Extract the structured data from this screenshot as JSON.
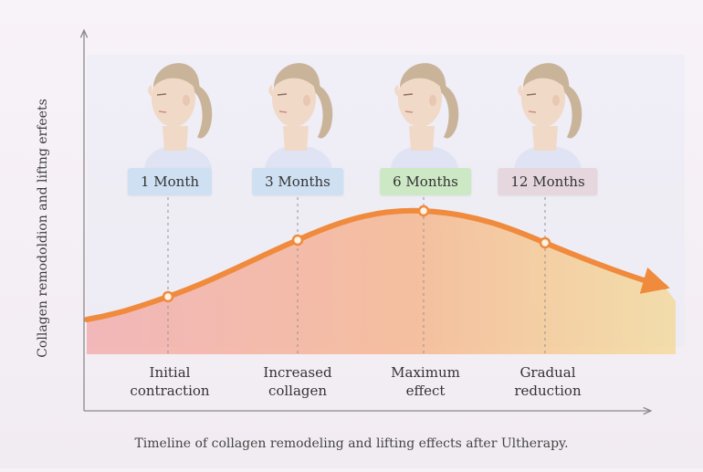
{
  "y_axis_label": "Collagen remodoldion and liftng erfeets",
  "caption": "Timeline of collagen remodeling and lifting effects after Ultherapy.",
  "milestones": [
    {
      "time": "1 Month",
      "label_line1": "Initial",
      "label_line2": "contraction",
      "chip_color": "#cfe0f3",
      "effect": 0.32
    },
    {
      "time": "3 Months",
      "label_line1": "Increased",
      "label_line2": "collagen",
      "chip_color": "#cfe0f3",
      "effect": 0.72
    },
    {
      "time": "6 Months",
      "label_line1": "Maximum",
      "label_line2": "effect",
      "chip_color": "#cde8c4",
      "effect": 1.0
    },
    {
      "time": "12 Months",
      "label_line1": "Gradual",
      "label_line2": "reduction",
      "chip_color": "#e6d7df",
      "effect": 0.7
    }
  ],
  "colors": {
    "curve": "#f08a3c",
    "fill_top": "#f6c36a",
    "fill_bottom": "#f3a6a6",
    "axis": "#8a8a8a",
    "hair": "#c9b49a",
    "skin": "#f1d9c8",
    "shirt": "#dfe3f3"
  }
}
